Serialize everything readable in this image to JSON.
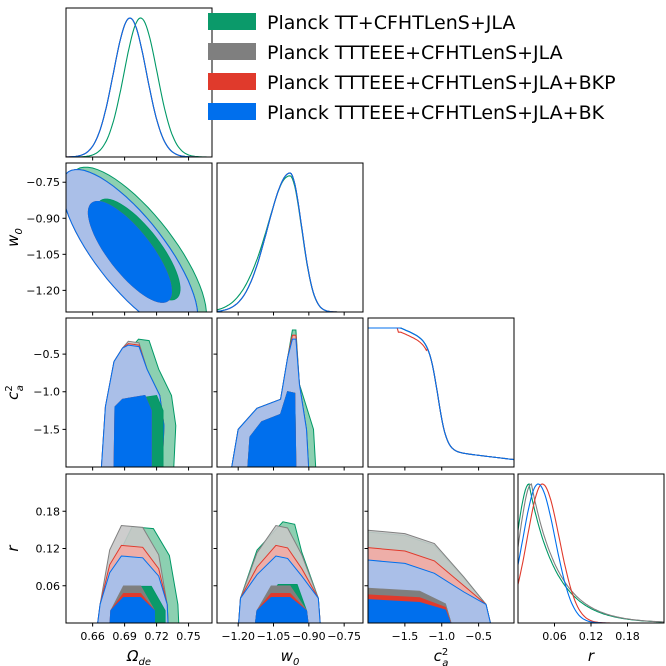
{
  "chart_data": {
    "type": "triangle",
    "parameters": [
      {
        "key": "omega",
        "label": "Ω",
        "sub": "de",
        "sup": "",
        "ticks": [
          0.66,
          0.69,
          0.72,
          0.75
        ],
        "tick_labels": [
          "0.66",
          "0.69",
          "0.72",
          "0.75"
        ],
        "range": [
          0.635,
          0.772
        ]
      },
      {
        "key": "w0",
        "label": "w",
        "sub": "0",
        "sup": "",
        "ticks": [
          -1.2,
          -1.05,
          -0.9,
          -0.75
        ],
        "tick_labels": [
          "−1.20",
          "−1.05",
          "−0.90",
          "−0.75"
        ],
        "range": [
          -1.29,
          -0.67
        ]
      },
      {
        "key": "ca2",
        "label": "c",
        "sub": "a",
        "sup": "2",
        "ticks": [
          -1.5,
          -1.0,
          -0.5
        ],
        "tick_labels": [
          "−1.5",
          "−1.0",
          "−0.5"
        ],
        "range": [
          -2.0,
          -0.02
        ]
      },
      {
        "key": "r",
        "label": "r",
        "sub": "",
        "sup": "",
        "ticks": [
          0.06,
          0.12,
          0.18
        ],
        "tick_labels": [
          "0.06",
          "0.12",
          "0.18"
        ],
        "range": [
          0.0,
          0.24
        ]
      }
    ],
    "series": [
      {
        "name": "Planck TT+CFHTLenS+JLA",
        "color": "#009966",
        "fill_inner": "#0b9a6a",
        "fill_outer": "#7fcba8"
      },
      {
        "name": "Planck TTTEEE+CFHTLenS+JLA",
        "color": "#808080",
        "fill_inner": "#7f7f7f",
        "fill_outer": "#c8c8c8"
      },
      {
        "name": "Planck TTTEEE+CFHTLenS+JLA+BKP",
        "color": "#e03a2c",
        "fill_inner": "#e03a2c",
        "fill_outer": "#f3aba4"
      },
      {
        "name": "Planck TTTEEE+CFHTLenS+JLA+BK",
        "color": "#006fed",
        "fill_inner": "#006fed",
        "fill_outer": "#9dc2f3"
      }
    ],
    "legend_position": "top-right",
    "grid": false
  }
}
